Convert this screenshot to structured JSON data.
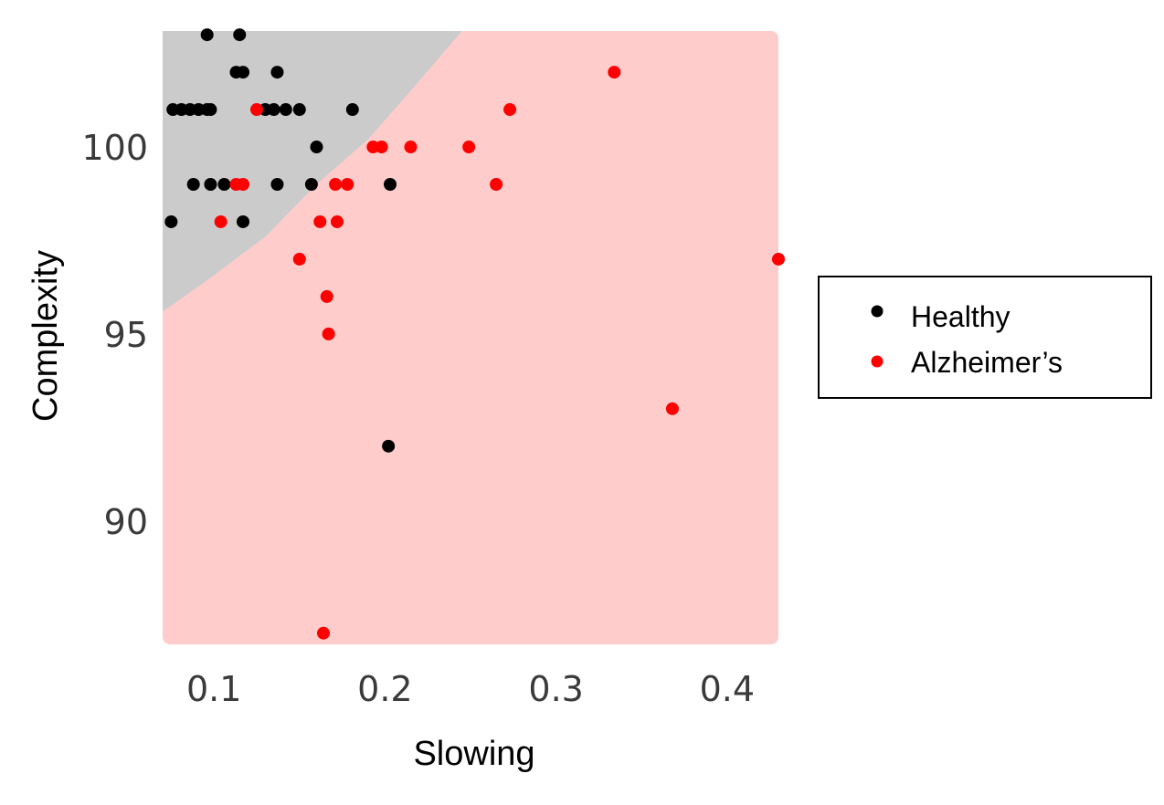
{
  "chart_data": {
    "type": "scatter",
    "xlabel": "Slowing",
    "ylabel": "Complexity",
    "xlim": [
      0.07,
      0.43
    ],
    "ylim": [
      86.7,
      103.1
    ],
    "xticks": [
      {
        "value": 0.1,
        "label": "0.1"
      },
      {
        "value": 0.2,
        "label": "0.2"
      },
      {
        "value": 0.3,
        "label": "0.3"
      },
      {
        "value": 0.4,
        "label": "0.4"
      }
    ],
    "yticks": [
      {
        "value": 90,
        "label": "90"
      },
      {
        "value": 95,
        "label": "95"
      },
      {
        "value": 100,
        "label": "100"
      }
    ],
    "grid": false,
    "legend_position": "right",
    "regions": [
      {
        "class": "Healthy",
        "color": "#cbcbcb",
        "boundary": [
          [
            0.07,
            95.6
          ],
          [
            0.095,
            96.4
          ],
          [
            0.13,
            97.6
          ],
          [
            0.16,
            99.0
          ],
          [
            0.19,
            100.2
          ],
          [
            0.215,
            101.5
          ],
          [
            0.245,
            103.1
          ],
          [
            0.07,
            103.1
          ]
        ]
      },
      {
        "class": "Alzheimer's",
        "color": "#ffcccc"
      }
    ],
    "series": [
      {
        "name": "Healthy",
        "color": "#000000",
        "points": [
          [
            0.096,
            103
          ],
          [
            0.115,
            103
          ],
          [
            0.113,
            102
          ],
          [
            0.117,
            102
          ],
          [
            0.137,
            102
          ],
          [
            0.076,
            101
          ],
          [
            0.081,
            101
          ],
          [
            0.086,
            101
          ],
          [
            0.091,
            101
          ],
          [
            0.096,
            101
          ],
          [
            0.098,
            101
          ],
          [
            0.13,
            101
          ],
          [
            0.135,
            101
          ],
          [
            0.142,
            101
          ],
          [
            0.15,
            101
          ],
          [
            0.181,
            101
          ],
          [
            0.16,
            100
          ],
          [
            0.088,
            99
          ],
          [
            0.098,
            99
          ],
          [
            0.106,
            99
          ],
          [
            0.137,
            99
          ],
          [
            0.157,
            99
          ],
          [
            0.203,
            99
          ],
          [
            0.075,
            98
          ],
          [
            0.117,
            98
          ],
          [
            0.202,
            92
          ]
        ]
      },
      {
        "name": "Alzheimer’s",
        "color": "#ff0000",
        "points": [
          [
            0.334,
            102
          ],
          [
            0.125,
            101
          ],
          [
            0.273,
            101
          ],
          [
            0.193,
            100
          ],
          [
            0.198,
            100
          ],
          [
            0.215,
            100
          ],
          [
            0.249,
            100
          ],
          [
            0.113,
            99
          ],
          [
            0.117,
            99
          ],
          [
            0.171,
            99
          ],
          [
            0.178,
            99
          ],
          [
            0.265,
            99
          ],
          [
            0.104,
            98
          ],
          [
            0.162,
            98
          ],
          [
            0.172,
            98
          ],
          [
            0.15,
            97
          ],
          [
            0.43,
            97
          ],
          [
            0.166,
            96
          ],
          [
            0.167,
            95
          ],
          [
            0.368,
            93
          ],
          [
            0.164,
            87
          ]
        ]
      }
    ]
  }
}
